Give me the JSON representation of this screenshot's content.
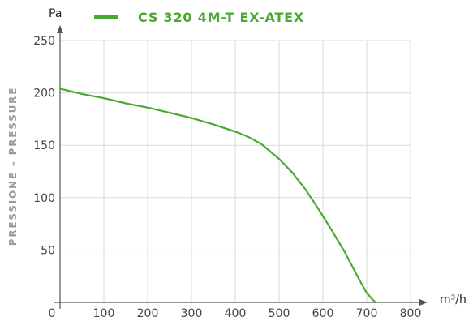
{
  "colors": {
    "series": "#4ba833",
    "grid": "#d9d9d9",
    "axis": "#555555",
    "ylabel": "#9a9a9a"
  },
  "chart_data": {
    "type": "line",
    "ylabel": "PRESSIONE – PRESSURE",
    "y_unit": "Pa",
    "x_unit": "m³/h",
    "xlim": [
      0,
      800
    ],
    "ylim": [
      0,
      250
    ],
    "x_ticks": [
      0,
      100,
      200,
      300,
      400,
      500,
      600,
      700,
      800
    ],
    "x_tick_labels": [
      "0",
      "100",
      "200",
      "300",
      "400",
      "500",
      "600",
      "700",
      "800"
    ],
    "y_ticks": [
      50,
      100,
      150,
      200,
      250
    ],
    "y_tick_labels": [
      "50",
      "100",
      "150",
      "200",
      "250"
    ],
    "grid": true,
    "legend_position": "top",
    "series": [
      {
        "name": "CS 320 4M-T EX-ATEX",
        "color": "#4ba833",
        "x": [
          0,
          50,
          100,
          150,
          200,
          250,
          300,
          350,
          400,
          430,
          460,
          480,
          500,
          530,
          560,
          590,
          620,
          650,
          680,
          700,
          715,
          720
        ],
        "y": [
          204,
          199,
          195,
          190,
          186,
          181,
          176,
          170,
          163,
          158,
          151,
          144,
          137,
          124,
          108,
          89,
          69,
          48,
          24,
          9,
          2,
          0
        ]
      }
    ]
  }
}
